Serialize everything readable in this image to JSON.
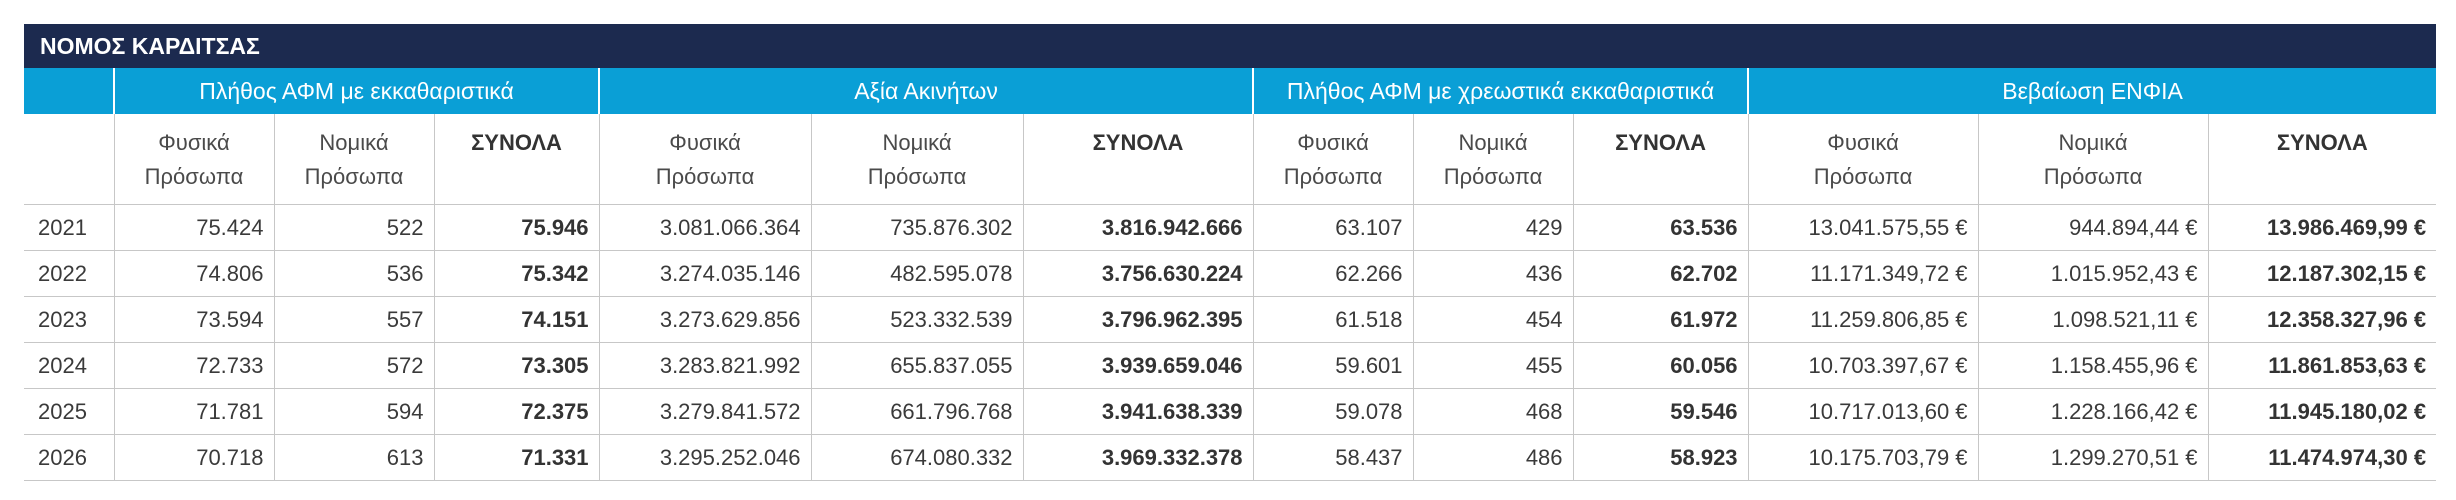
{
  "title": "ΝΟΜΟΣ ΚΑΡΔΙΤΣΑΣ",
  "groups": [
    "Πλήθος ΑΦΜ με εκκαθαριστικά",
    "Αξία Ακινήτων",
    "Πλήθος ΑΦΜ με χρεωστικά εκκαθαριστικά",
    "Βεβαίωση ΕΝΦΙΑ"
  ],
  "subheaders": {
    "natural_l1": "Φυσικά",
    "natural_l2": "Πρόσωπα",
    "legal_l1": "Νομικά",
    "legal_l2": "Πρόσωπα",
    "total": "ΣΥΝΟΛΑ"
  },
  "rows": [
    [
      "2021",
      "75.424",
      "522",
      "75.946",
      "3.081.066.364",
      "735.876.302",
      "3.816.942.666",
      "63.107",
      "429",
      "63.536",
      "13.041.575,55 €",
      "944.894,44 €",
      "13.986.469,99 €"
    ],
    [
      "2022",
      "74.806",
      "536",
      "75.342",
      "3.274.035.146",
      "482.595.078",
      "3.756.630.224",
      "62.266",
      "436",
      "62.702",
      "11.171.349,72 €",
      "1.015.952,43 €",
      "12.187.302,15 €"
    ],
    [
      "2023",
      "73.594",
      "557",
      "74.151",
      "3.273.629.856",
      "523.332.539",
      "3.796.962.395",
      "61.518",
      "454",
      "61.972",
      "11.259.806,85 €",
      "1.098.521,11 €",
      "12.358.327,96 €"
    ],
    [
      "2024",
      "72.733",
      "572",
      "73.305",
      "3.283.821.992",
      "655.837.055",
      "3.939.659.046",
      "59.601",
      "455",
      "60.056",
      "10.703.397,67 €",
      "1.158.455,96 €",
      "11.861.853,63 €"
    ],
    [
      "2025",
      "71.781",
      "594",
      "72.375",
      "3.279.841.572",
      "661.796.768",
      "3.941.638.339",
      "59.078",
      "468",
      "59.546",
      "10.717.013,60 €",
      "1.228.166,42 €",
      "11.945.180,02 €"
    ],
    [
      "2026",
      "70.718",
      "613",
      "71.331",
      "3.295.252.046",
      "674.080.332",
      "3.969.332.378",
      "58.437",
      "486",
      "58.923",
      "10.175.703,79 €",
      "1.299.270,51 €",
      "11.474.974,30 €"
    ]
  ]
}
